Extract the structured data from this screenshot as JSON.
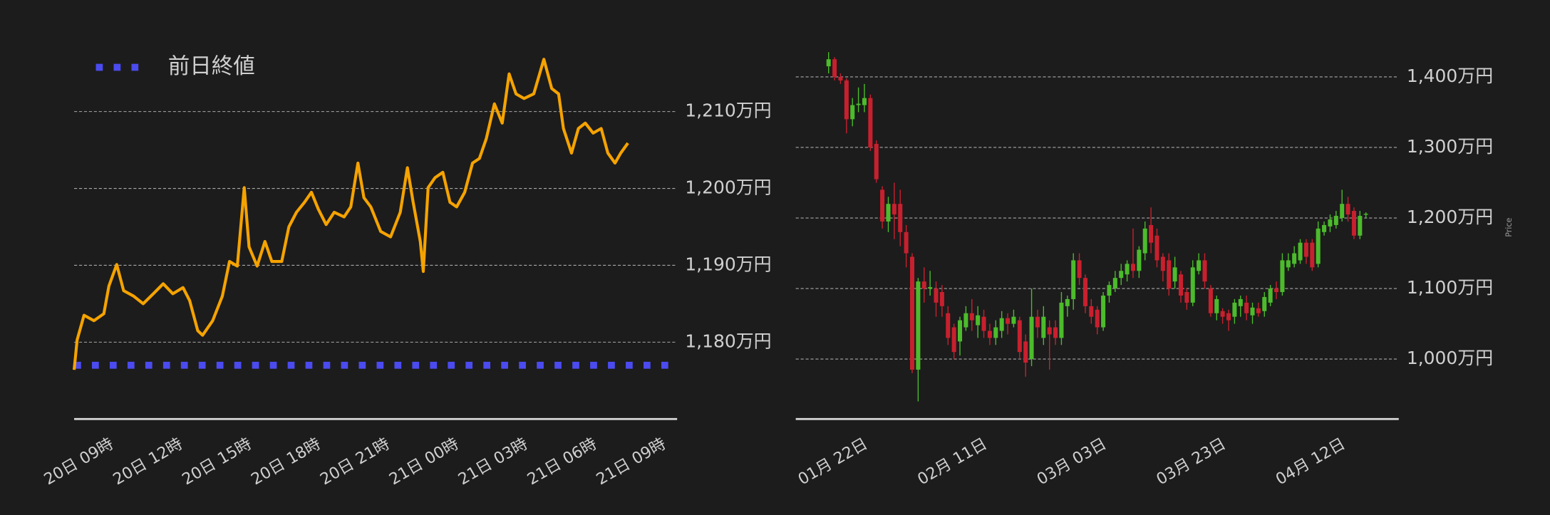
{
  "chart_data": [
    {
      "type": "line",
      "x": [
        -2.0,
        -1.87,
        -1.57,
        -1.14,
        -0.71,
        -0.49,
        -0.15,
        0.15,
        0.58,
        1.0,
        1.44,
        1.87,
        2.29,
        2.73,
        3.02,
        3.37,
        3.58,
        4.02,
        4.44,
        4.75,
        5.09,
        5.39,
        5.6,
        5.95,
        6.29,
        6.59,
        7.02,
        7.33,
        7.66,
        8.01,
        8.31,
        8.61,
        8.95,
        9.3,
        9.73,
        10.02,
        10.33,
        10.59,
        10.89,
        11.32,
        11.75,
        12.17,
        12.48,
        12.73,
        13.04,
        13.17,
        13.38,
        13.68,
        14.02,
        14.33,
        14.62,
        14.97,
        15.31,
        15.61,
        15.91,
        16.26,
        16.6,
        16.9,
        17.2,
        17.55,
        17.97,
        18.41,
        18.75,
        19.05,
        19.26,
        19.61,
        19.91,
        20.21,
        20.55,
        20.9,
        21.19,
        21.5,
        21.75,
        22.06
      ],
      "values": [
        1176.4,
        1180.3,
        1183.5,
        1182.8,
        1183.7,
        1187.3,
        1190.1,
        1186.7,
        1186.0,
        1185.0,
        1186.3,
        1187.6,
        1186.3,
        1187.1,
        1185.4,
        1181.5,
        1180.9,
        1182.8,
        1186.0,
        1190.5,
        1189.9,
        1200.1,
        1192.4,
        1189.9,
        1193.1,
        1190.5,
        1190.5,
        1195.0,
        1196.9,
        1198.2,
        1199.5,
        1197.3,
        1195.3,
        1196.9,
        1196.3,
        1197.6,
        1203.3,
        1198.8,
        1197.6,
        1194.4,
        1193.7,
        1196.9,
        1202.7,
        1198.2,
        1193.1,
        1189.2,
        1200.1,
        1201.4,
        1202.1,
        1198.2,
        1197.6,
        1199.5,
        1203.3,
        1203.9,
        1206.5,
        1211.0,
        1208.5,
        1214.9,
        1212.3,
        1211.7,
        1212.3,
        1216.8,
        1213.0,
        1212.3,
        1207.8,
        1204.6,
        1207.8,
        1208.5,
        1207.2,
        1207.8,
        1204.6,
        1203.3,
        1204.6,
        1205.9
      ],
      "color": "#f5a300",
      "xlim": [
        -2,
        24.2
      ],
      "xticks": [
        {
          "value": 0,
          "label": "20日 09時"
        },
        {
          "value": 3,
          "label": "20日 12時"
        },
        {
          "value": 6,
          "label": "20日 15時"
        },
        {
          "value": 9,
          "label": "20日 18時"
        },
        {
          "value": 12,
          "label": "20日 21時"
        },
        {
          "value": 15,
          "label": "21日 00時"
        },
        {
          "value": 18,
          "label": "21日 03時"
        },
        {
          "value": 21,
          "label": "21日 06時"
        },
        {
          "value": 24,
          "label": "21日 09時"
        }
      ],
      "ylim": [
        1170,
        1220
      ],
      "yticks": [
        {
          "value": 1180,
          "label": "1,180万円"
        },
        {
          "value": 1190,
          "label": "1,190万円"
        },
        {
          "value": 1200,
          "label": "1,200万円"
        },
        {
          "value": 1210,
          "label": "1,210万円"
        }
      ],
      "grid": true,
      "reference_line": {
        "name": "前日終値",
        "value": 1177,
        "color": "#4b4bf0"
      },
      "legend_position": "upper left"
    },
    {
      "type": "candlestick",
      "categories": [
        null,
        null,
        null,
        null,
        null,
        null,
        "01月 22日",
        null,
        null,
        null,
        null,
        null,
        null,
        null,
        null,
        null,
        null,
        null,
        null,
        null,
        null,
        null,
        null,
        null,
        null,
        null,
        "02月 11日",
        null,
        null,
        null,
        null,
        null,
        null,
        null,
        null,
        null,
        null,
        null,
        null,
        null,
        null,
        null,
        null,
        null,
        null,
        null,
        "03月 03日",
        null,
        null,
        null,
        null,
        null,
        null,
        null,
        null,
        null,
        null,
        null,
        null,
        null,
        null,
        null,
        null,
        null,
        null,
        null,
        "03月 23日",
        null,
        null,
        null,
        null,
        null,
        null,
        null,
        null,
        null,
        null,
        null,
        null,
        null,
        null,
        null,
        null,
        null,
        null,
        null,
        "04月 12日",
        null,
        null,
        null,
        null
      ],
      "open": [
        1415,
        1425,
        1400,
        1395,
        1340,
        1360,
        1360,
        1370,
        1305,
        1240,
        1195,
        1220,
        1220,
        1180,
        1145,
        985,
        1110,
        1100,
        1100,
        1095,
        1065,
        1045,
        1025,
        1045,
        1065,
        1048,
        1060,
        1040,
        1030,
        1040,
        1058,
        1050,
        1055,
        1025,
        1000,
        1060,
        1030,
        1045,
        1045,
        1030,
        1075,
        1085,
        1140,
        1115,
        1075,
        1070,
        1045,
        1090,
        1100,
        1115,
        1120,
        1135,
        1125,
        1150,
        1190,
        1175,
        1145,
        1140,
        1110,
        1120,
        1095,
        1080,
        1125,
        1140,
        1100,
        1065,
        1068,
        1065,
        1060,
        1075,
        1080,
        1062,
        1072,
        1068,
        1080,
        1100,
        1095,
        1130,
        1135,
        1140,
        1165,
        1165,
        1135,
        1180,
        1188,
        1190,
        1200,
        1220,
        1210,
        1175,
        1205
      ],
      "high": [
        1435,
        1428,
        1405,
        1398,
        1370,
        1385,
        1390,
        1375,
        1310,
        1245,
        1230,
        1250,
        1240,
        1190,
        1150,
        1115,
        1130,
        1125,
        1110,
        1105,
        1075,
        1050,
        1060,
        1075,
        1085,
        1075,
        1070,
        1050,
        1055,
        1068,
        1065,
        1070,
        1060,
        1035,
        1100,
        1070,
        1075,
        1055,
        1055,
        1095,
        1090,
        1150,
        1150,
        1120,
        1085,
        1075,
        1095,
        1110,
        1125,
        1135,
        1140,
        1185,
        1160,
        1195,
        1215,
        1185,
        1150,
        1150,
        1145,
        1125,
        1100,
        1140,
        1150,
        1150,
        1105,
        1090,
        1072,
        1070,
        1085,
        1090,
        1090,
        1080,
        1080,
        1095,
        1105,
        1110,
        1150,
        1150,
        1160,
        1170,
        1170,
        1170,
        1195,
        1195,
        1205,
        1210,
        1240,
        1230,
        1215,
        1210,
        1208
      ],
      "low": [
        1405,
        1395,
        1390,
        1320,
        1330,
        1350,
        1350,
        1295,
        1250,
        1185,
        1180,
        1170,
        1160,
        1130,
        980,
        940,
        1080,
        1090,
        1060,
        1060,
        1020,
        1000,
        1005,
        1040,
        1040,
        1030,
        1030,
        1020,
        1020,
        1030,
        1035,
        1045,
        1000,
        975,
        990,
        1030,
        1020,
        985,
        1020,
        1020,
        1060,
        1070,
        1105,
        1065,
        1050,
        1035,
        1040,
        1080,
        1095,
        1105,
        1110,
        1115,
        1115,
        1140,
        1150,
        1130,
        1110,
        1090,
        1100,
        1080,
        1070,
        1075,
        1120,
        1100,
        1060,
        1055,
        1050,
        1040,
        1050,
        1060,
        1055,
        1050,
        1060,
        1060,
        1075,
        1085,
        1090,
        1125,
        1130,
        1135,
        1135,
        1125,
        1130,
        1175,
        1180,
        1185,
        1195,
        1195,
        1170,
        1170,
        1200
      ],
      "close": [
        1425,
        1400,
        1395,
        1340,
        1360,
        1362,
        1370,
        1300,
        1255,
        1195,
        1220,
        1205,
        1180,
        1150,
        985,
        1110,
        1100,
        1102,
        1080,
        1075,
        1030,
        1010,
        1055,
        1065,
        1055,
        1062,
        1040,
        1030,
        1045,
        1058,
        1050,
        1060,
        1010,
        995,
        1060,
        1045,
        1060,
        1035,
        1030,
        1080,
        1085,
        1140,
        1115,
        1075,
        1060,
        1045,
        1090,
        1105,
        1115,
        1125,
        1135,
        1125,
        1155,
        1185,
        1165,
        1140,
        1125,
        1100,
        1130,
        1090,
        1080,
        1130,
        1140,
        1110,
        1065,
        1085,
        1060,
        1055,
        1080,
        1085,
        1065,
        1073,
        1065,
        1088,
        1100,
        1095,
        1140,
        1140,
        1150,
        1165,
        1145,
        1130,
        1185,
        1190,
        1198,
        1203,
        1220,
        1205,
        1175,
        1203,
        1206
      ],
      "up_color": "#4cbb2c",
      "down_color": "#c8202e",
      "ylim": [
        915,
        1450
      ],
      "yticks": [
        {
          "value": 1000,
          "label": "1,000万円"
        },
        {
          "value": 1100,
          "label": "1,100万円"
        },
        {
          "value": 1200,
          "label": "1,200万円"
        },
        {
          "value": 1300,
          "label": "1,300万円"
        },
        {
          "value": 1400,
          "label": "1,400万円"
        }
      ],
      "y_label": "Price",
      "grid": true
    }
  ]
}
